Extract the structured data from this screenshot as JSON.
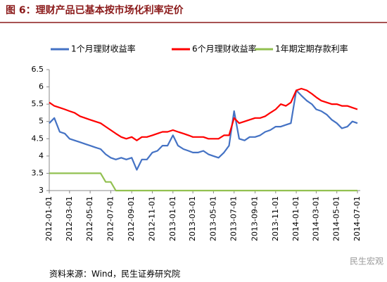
{
  "chart_data": {
    "type": "line",
    "title": "图 6：理财产品已基本按市场化利率定价",
    "source": "资料来源：Wind，民生证券研究院",
    "watermark": "民生宏观",
    "x": [
      "2012-01-01",
      "2012-01-16",
      "2012-02-01",
      "2012-02-16",
      "2012-03-01",
      "2012-03-16",
      "2012-04-01",
      "2012-04-16",
      "2012-05-01",
      "2012-05-16",
      "2012-06-01",
      "2012-06-16",
      "2012-07-01",
      "2012-07-16",
      "2012-08-01",
      "2012-08-16",
      "2012-09-01",
      "2012-09-16",
      "2012-10-01",
      "2012-10-16",
      "2012-11-01",
      "2012-11-16",
      "2012-12-01",
      "2012-12-16",
      "2013-01-01",
      "2013-01-16",
      "2013-02-01",
      "2013-02-16",
      "2013-03-01",
      "2013-03-16",
      "2013-04-01",
      "2013-04-16",
      "2013-05-01",
      "2013-05-16",
      "2013-06-01",
      "2013-06-16",
      "2013-07-01",
      "2013-07-16",
      "2013-08-01",
      "2013-08-16",
      "2013-09-01",
      "2013-09-16",
      "2013-10-01",
      "2013-10-16",
      "2013-11-01",
      "2013-11-16",
      "2013-12-01",
      "2013-12-16",
      "2014-01-01",
      "2014-01-16",
      "2014-02-01",
      "2014-02-16",
      "2014-03-01",
      "2014-03-16",
      "2014-04-01",
      "2014-04-16",
      "2014-05-01",
      "2014-05-16",
      "2014-06-01",
      "2014-06-16",
      "2014-07-01"
    ],
    "series": [
      {
        "name": "1个月理财收益率",
        "color": "#4472c4",
        "values": [
          4.95,
          5.1,
          4.7,
          4.65,
          4.5,
          4.45,
          4.4,
          4.35,
          4.3,
          4.25,
          4.2,
          4.05,
          3.95,
          3.9,
          3.95,
          3.9,
          3.95,
          3.6,
          3.9,
          3.9,
          4.1,
          4.15,
          4.3,
          4.3,
          4.6,
          4.3,
          4.2,
          4.15,
          4.1,
          4.1,
          4.15,
          4.05,
          4.0,
          3.95,
          4.1,
          4.3,
          5.3,
          4.5,
          4.45,
          4.55,
          4.55,
          4.6,
          4.7,
          4.75,
          4.85,
          4.85,
          4.9,
          4.95,
          5.9,
          5.75,
          5.6,
          5.5,
          5.35,
          5.3,
          5.2,
          5.05,
          4.95,
          4.8,
          4.85,
          5.0,
          4.95
        ]
      },
      {
        "name": "6个月理财收益率",
        "color": "#ff0000",
        "values": [
          5.55,
          5.45,
          5.4,
          5.35,
          5.3,
          5.25,
          5.15,
          5.1,
          5.05,
          5.0,
          4.95,
          4.85,
          4.75,
          4.65,
          4.55,
          4.5,
          4.55,
          4.45,
          4.55,
          4.55,
          4.6,
          4.65,
          4.7,
          4.7,
          4.75,
          4.7,
          4.65,
          4.6,
          4.55,
          4.55,
          4.55,
          4.5,
          4.5,
          4.5,
          4.6,
          4.6,
          5.1,
          4.95,
          5.0,
          5.05,
          5.1,
          5.1,
          5.15,
          5.25,
          5.35,
          5.5,
          5.45,
          5.55,
          5.9,
          5.95,
          5.9,
          5.8,
          5.7,
          5.6,
          5.55,
          5.5,
          5.5,
          5.45,
          5.45,
          5.4,
          5.35
        ]
      },
      {
        "name": "1年期定期存款利率",
        "color": "#92c050",
        "values": [
          3.5,
          3.5,
          3.5,
          3.5,
          3.5,
          3.5,
          3.5,
          3.5,
          3.5,
          3.5,
          3.5,
          3.25,
          3.25,
          3,
          3,
          3,
          3,
          3,
          3,
          3,
          3,
          3,
          3,
          3,
          3,
          3,
          3,
          3,
          3,
          3,
          3,
          3,
          3,
          3,
          3,
          3,
          3,
          3,
          3,
          3,
          3,
          3,
          3,
          3,
          3,
          3,
          3,
          3,
          3,
          3,
          3,
          3,
          3,
          3,
          3,
          3,
          3,
          3,
          3,
          3,
          3
        ]
      }
    ],
    "xlim": [
      "2012-01-01",
      "2014-07-01"
    ],
    "xticks": [
      "2012-01-01",
      "2012-03-01",
      "2012-05-01",
      "2012-07-01",
      "2012-09-01",
      "2012-11-01",
      "2013-01-01",
      "2013-03-01",
      "2013-05-01",
      "2013-07-01",
      "2013-09-01",
      "2013-11-01",
      "2014-01-01",
      "2014-03-01",
      "2014-05-01",
      "2014-07-01"
    ],
    "ylim": [
      3,
      6.5
    ],
    "yticks": [
      3,
      3.5,
      4,
      4.5,
      5,
      5.5,
      6,
      6.5
    ],
    "grid": false,
    "legend": "top"
  }
}
